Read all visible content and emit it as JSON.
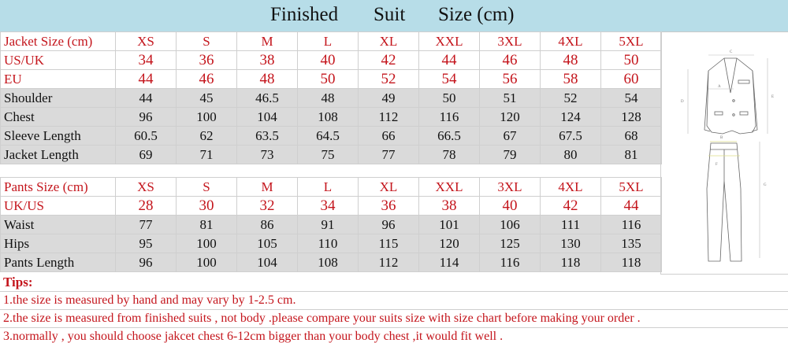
{
  "title": {
    "words": [
      "Finished",
      "Suit",
      "Size (cm)"
    ]
  },
  "jacket": {
    "header": {
      "label": "Jacket Size (cm)",
      "values": [
        "XS",
        "S",
        "M",
        "L",
        "XL",
        "XXL",
        "3XL",
        "4XL",
        "5XL"
      ]
    },
    "rows": [
      {
        "label": "US/UK",
        "values": [
          "34",
          "36",
          "38",
          "40",
          "42",
          "44",
          "46",
          "48",
          "50"
        ]
      },
      {
        "label": "EU",
        "values": [
          "44",
          "46",
          "48",
          "50",
          "52",
          "54",
          "56",
          "58",
          "60"
        ]
      },
      {
        "label": "Shoulder",
        "values": [
          "44",
          "45",
          "46.5",
          "48",
          "49",
          "50",
          "51",
          "52",
          "54"
        ]
      },
      {
        "label": "Chest",
        "values": [
          "96",
          "100",
          "104",
          "108",
          "112",
          "116",
          "120",
          "124",
          "128"
        ]
      },
      {
        "label": "Sleeve Length",
        "values": [
          "60.5",
          "62",
          "63.5",
          "64.5",
          "66",
          "66.5",
          "67",
          "67.5",
          "68"
        ]
      },
      {
        "label": "Jacket Length",
        "values": [
          "69",
          "71",
          "73",
          "75",
          "77",
          "78",
          "79",
          "80",
          "81"
        ]
      }
    ]
  },
  "pants": {
    "header": {
      "label": "Pants Size (cm)",
      "values": [
        "XS",
        "S",
        "M",
        "L",
        "XL",
        "XXL",
        "3XL",
        "4XL",
        "5XL"
      ]
    },
    "rows": [
      {
        "label": "UK/US",
        "values": [
          "28",
          "30",
          "32",
          "34",
          "36",
          "38",
          "40",
          "42",
          "44"
        ]
      },
      {
        "label": "Waist",
        "values": [
          "77",
          "81",
          "86",
          "91",
          "96",
          "101",
          "106",
          "111",
          "116"
        ]
      },
      {
        "label": "Hips",
        "values": [
          "95",
          "100",
          "105",
          "110",
          "115",
          "120",
          "125",
          "130",
          "135"
        ]
      },
      {
        "label": "Pants Length",
        "values": [
          "96",
          "100",
          "104",
          "108",
          "112",
          "114",
          "116",
          "118",
          "118"
        ]
      }
    ]
  },
  "diagram_labels": {
    "jacket": [
      "C",
      "A",
      "D",
      "E"
    ],
    "pants": [
      "B",
      "F",
      "G"
    ]
  },
  "tips": {
    "heading": "Tips:",
    "items": [
      "1.the size is measured by hand and may vary by 1-2.5 cm.",
      "2.the size is measured from finished suits , not body .please compare your suits size with size chart before making your order .",
      "3.normally , you should choose jakcet chest 6-12cm bigger than your body chest ,it would fit well ."
    ]
  },
  "colors": {
    "header_bg": "#b7dde8",
    "accent_red": "#c4151c",
    "gray_row": "#dadada"
  }
}
